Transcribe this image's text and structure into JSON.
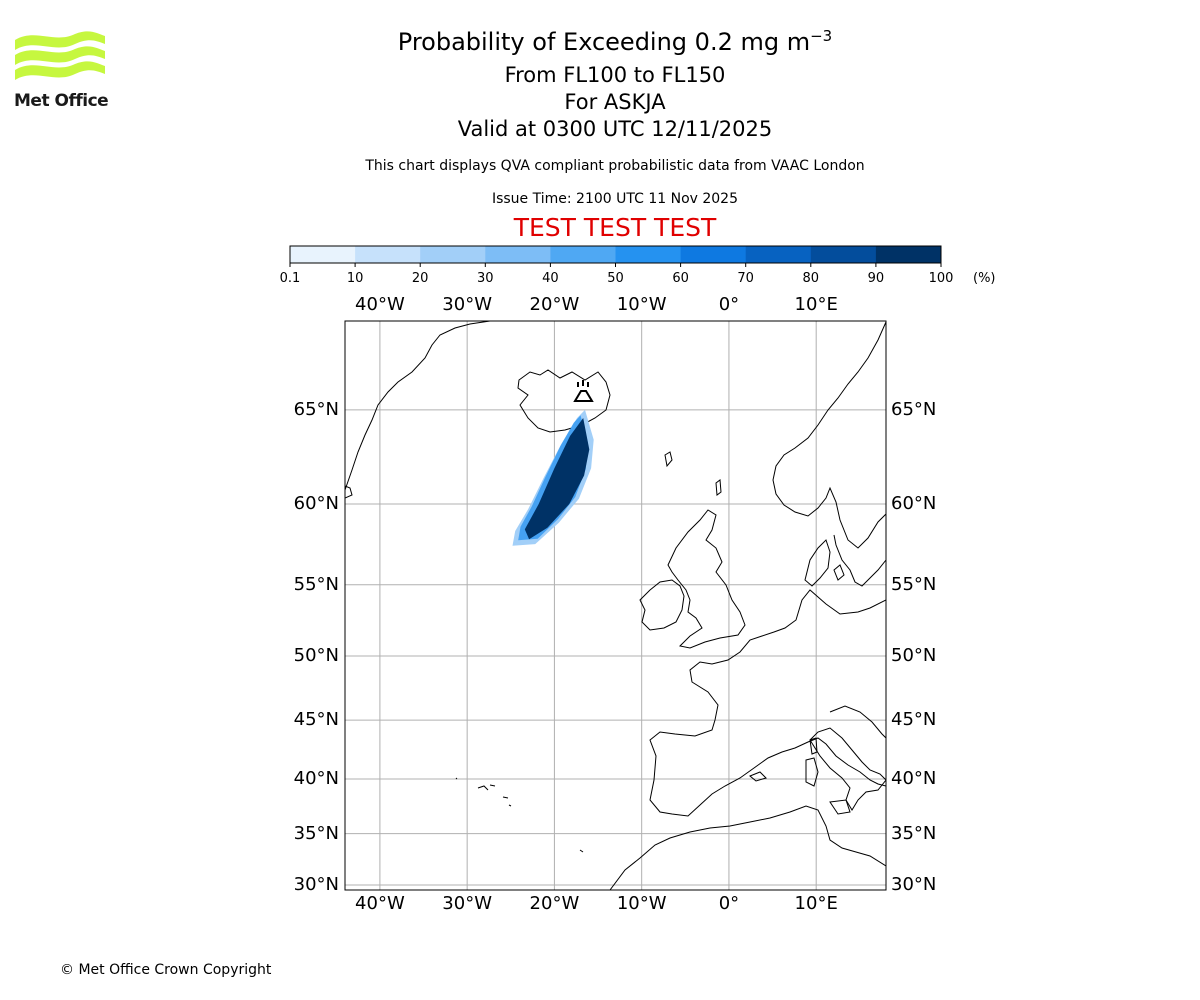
{
  "header": {
    "title_prefix": "Probability of Exceeding 0.2 mg m",
    "title_exponent": "−3",
    "level_line": "From FL100 to FL150",
    "volcano_line": "For ASKJA",
    "valid_line": "Valid at 0300 UTC 12/11/2025",
    "subtitle": "This chart displays QVA compliant probabilistic data from VAAC London",
    "issue_time": "Issue Time: 2100 UTC 11 Nov 2025",
    "test_banner": "TEST TEST TEST"
  },
  "logo": {
    "text": "Met Office",
    "color": "#c6f73f"
  },
  "colorbar": {
    "ticks": [
      "0.1",
      "10",
      "20",
      "30",
      "40",
      "50",
      "60",
      "70",
      "80",
      "90",
      "100"
    ],
    "unit": "(%)",
    "colors": [
      "#e8f3fd",
      "#c6e1fb",
      "#a2cff8",
      "#7dbdf6",
      "#4fa8f3",
      "#2592f0",
      "#0e79e1",
      "#0762c1",
      "#034d9c",
      "#003266"
    ]
  },
  "map": {
    "lon_labels": [
      "40°W",
      "30°W",
      "20°W",
      "10°W",
      "0°",
      "10°E"
    ],
    "lon_values": [
      -40,
      -30,
      -20,
      -10,
      0,
      10
    ],
    "lat_labels": [
      "65°N",
      "60°N",
      "55°N",
      "50°N",
      "45°N",
      "40°N",
      "35°N",
      "30°N"
    ],
    "lat_values": [
      65,
      60,
      55,
      50,
      45,
      40,
      35,
      30
    ],
    "extent": {
      "lon_min": -44,
      "lon_max": 18,
      "lat_min": 29.5,
      "lat_max": 69
    },
    "volcano": {
      "name": "ASKJA",
      "lon": -16.75,
      "lat": 65.03
    },
    "plume": {
      "outer_polygon": [
        [
          -16.5,
          65.0
        ],
        [
          -15.5,
          63.5
        ],
        [
          -15.8,
          62.0
        ],
        [
          -17.2,
          60.3
        ],
        [
          -19.5,
          58.9
        ],
        [
          -22.2,
          57.6
        ],
        [
          -24.8,
          57.5
        ],
        [
          -24.5,
          58.4
        ],
        [
          -23.0,
          59.7
        ],
        [
          -21.2,
          61.5
        ],
        [
          -19.2,
          63.3
        ],
        [
          -17.4,
          64.6
        ]
      ],
      "core_polygon": [
        [
          -16.7,
          64.6
        ],
        [
          -16.0,
          63.0
        ],
        [
          -16.6,
          61.6
        ],
        [
          -18.3,
          60.0
        ],
        [
          -20.8,
          58.6
        ],
        [
          -22.9,
          57.9
        ],
        [
          -23.4,
          58.5
        ],
        [
          -21.8,
          60.0
        ],
        [
          -20.0,
          62.0
        ],
        [
          -18.2,
          63.7
        ]
      ],
      "probability_max": 100
    }
  },
  "footer": {
    "copyright": "© Met Office Crown Copyright"
  }
}
